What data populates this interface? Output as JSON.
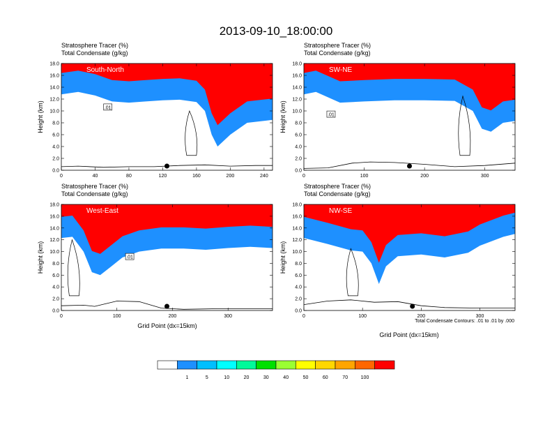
{
  "title": "2013-09-10_18:00:00",
  "chart_data": {
    "type": "heatmap",
    "shared": {
      "subtitle_line1": "Stratosphere Tracer   (%)",
      "subtitle_line2": "Total Condensate   (g/kg)",
      "ylabel": "Height (km)",
      "xlabel": "Grid Point (dx=15km)",
      "ylim": [
        0,
        18
      ],
      "yticks": [
        "0.0",
        "2.0",
        "4.0",
        "6.0",
        "8.0",
        "10.0",
        "12.0",
        "14.0",
        "16.0",
        "18.0"
      ],
      "contour_note": "Total Condensate Contours: .01 to .01 by .000",
      "contour_label": ".01"
    },
    "panels": [
      {
        "name": "South-North",
        "xlim": [
          0,
          250
        ],
        "xticks": [
          0,
          40,
          80,
          120,
          160,
          200,
          240
        ],
        "marker_x": 125,
        "tropopause": [
          [
            0,
            14.8
          ],
          [
            20,
            15.2
          ],
          [
            40,
            14.6
          ],
          [
            60,
            13.6
          ],
          [
            80,
            13.4
          ],
          [
            100,
            13.6
          ],
          [
            120,
            13.8
          ],
          [
            140,
            13.9
          ],
          [
            160,
            13.5
          ],
          [
            170,
            12.0
          ],
          [
            178,
            8.0
          ],
          [
            185,
            6.0
          ],
          [
            200,
            8.0
          ],
          [
            220,
            10.0
          ],
          [
            250,
            10.5
          ]
        ],
        "boundary_layer": [
          [
            0,
            0.6
          ],
          [
            20,
            0.7
          ],
          [
            50,
            0.5
          ],
          [
            80,
            0.6
          ],
          [
            110,
            0.6
          ],
          [
            140,
            0.8
          ],
          [
            170,
            0.9
          ],
          [
            200,
            0.7
          ],
          [
            230,
            0.8
          ],
          [
            250,
            0.8
          ]
        ],
        "contour_label_x": 55,
        "contour_label_y": 10.6
      },
      {
        "name": "SW-NE",
        "xlim": [
          0,
          350
        ],
        "xticks": [
          0,
          100,
          200,
          300
        ],
        "marker_x": 175,
        "tropopause": [
          [
            0,
            14.8
          ],
          [
            20,
            15.2
          ],
          [
            60,
            13.4
          ],
          [
            100,
            13.6
          ],
          [
            150,
            13.8
          ],
          [
            200,
            13.8
          ],
          [
            250,
            13.7
          ],
          [
            280,
            12.0
          ],
          [
            295,
            9.0
          ],
          [
            310,
            8.5
          ],
          [
            330,
            10.0
          ],
          [
            350,
            10.3
          ]
        ],
        "boundary_layer": [
          [
            0,
            0.3
          ],
          [
            40,
            0.4
          ],
          [
            80,
            1.2
          ],
          [
            110,
            1.4
          ],
          [
            150,
            1.3
          ],
          [
            200,
            1.0
          ],
          [
            250,
            0.6
          ],
          [
            300,
            0.8
          ],
          [
            350,
            1.2
          ]
        ],
        "contour_label_x": 45,
        "contour_label_y": 9.4
      },
      {
        "name": "West-East",
        "xlim": [
          0,
          380
        ],
        "xticks": [
          0,
          100,
          200,
          300
        ],
        "marker_x": 190,
        "tropopause": [
          [
            0,
            14.3
          ],
          [
            20,
            14.5
          ],
          [
            40,
            12.0
          ],
          [
            55,
            8.5
          ],
          [
            70,
            8.0
          ],
          [
            90,
            9.5
          ],
          [
            110,
            11.0
          ],
          [
            140,
            12.0
          ],
          [
            180,
            12.5
          ],
          [
            220,
            12.5
          ],
          [
            260,
            12.3
          ],
          [
            300,
            12.6
          ],
          [
            340,
            12.8
          ],
          [
            380,
            12.6
          ]
        ],
        "boundary_layer": [
          [
            0,
            0.8
          ],
          [
            40,
            0.9
          ],
          [
            60,
            0.7
          ],
          [
            100,
            1.6
          ],
          [
            140,
            1.5
          ],
          [
            180,
            0.4
          ],
          [
            220,
            0.2
          ],
          [
            280,
            0.3
          ],
          [
            340,
            0.3
          ],
          [
            380,
            0.3
          ]
        ],
        "contour_label_x": 123,
        "contour_label_y": 9.1
      },
      {
        "name": "NW-SE",
        "xlim": [
          0,
          360
        ],
        "xticks": [
          0,
          100,
          200,
          300
        ],
        "marker_x": 185,
        "tropopause": [
          [
            0,
            14.3
          ],
          [
            40,
            13.3
          ],
          [
            80,
            12.2
          ],
          [
            100,
            12.0
          ],
          [
            115,
            10.0
          ],
          [
            128,
            6.5
          ],
          [
            140,
            9.5
          ],
          [
            160,
            11.2
          ],
          [
            200,
            11.5
          ],
          [
            240,
            11.0
          ],
          [
            280,
            11.8
          ],
          [
            300,
            13.0
          ],
          [
            340,
            14.5
          ],
          [
            360,
            15.0
          ]
        ],
        "boundary_layer": [
          [
            0,
            1.0
          ],
          [
            40,
            1.6
          ],
          [
            80,
            1.8
          ],
          [
            120,
            1.4
          ],
          [
            160,
            1.5
          ],
          [
            200,
            0.8
          ],
          [
            240,
            0.5
          ],
          [
            300,
            0.4
          ],
          [
            360,
            0.4
          ]
        ],
        "contour_label_x": 0,
        "contour_label_y": 0
      }
    ],
    "colorbar": {
      "levels": [
        "1",
        "5",
        "10",
        "20",
        "30",
        "40",
        "50",
        "60",
        "70",
        "100"
      ],
      "colors": [
        "#ffffff",
        "#1e90ff",
        "#00bfff",
        "#00ffff",
        "#00fa9a",
        "#00e000",
        "#9aff32",
        "#ffff00",
        "#ffd700",
        "#ffa500",
        "#ff6600",
        "#ff0000"
      ]
    }
  }
}
